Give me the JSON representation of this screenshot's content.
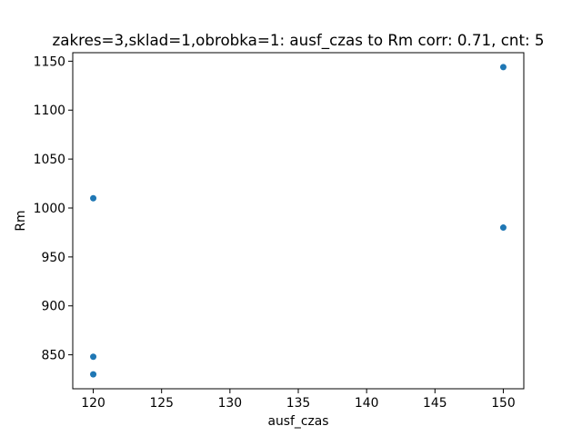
{
  "chart_data": {
    "type": "scatter",
    "title": "zakres=3,sklad=1,obrobka=1: ausf_czas to Rm corr: 0.71, cnt: 5",
    "xlabel": "ausf_czas",
    "ylabel": "Rm",
    "xlim": [
      118.5,
      151.5
    ],
    "ylim": [
      815.3,
      1158.7
    ],
    "xticks": [
      120,
      125,
      130,
      135,
      140,
      145,
      150
    ],
    "yticks": [
      850,
      900,
      950,
      1000,
      1050,
      1100,
      1150
    ],
    "color": "#1f77b4",
    "points": [
      {
        "x": 120,
        "y": 1010
      },
      {
        "x": 120,
        "y": 848
      },
      {
        "x": 120,
        "y": 830
      },
      {
        "x": 150,
        "y": 1144
      },
      {
        "x": 150,
        "y": 980
      }
    ]
  }
}
